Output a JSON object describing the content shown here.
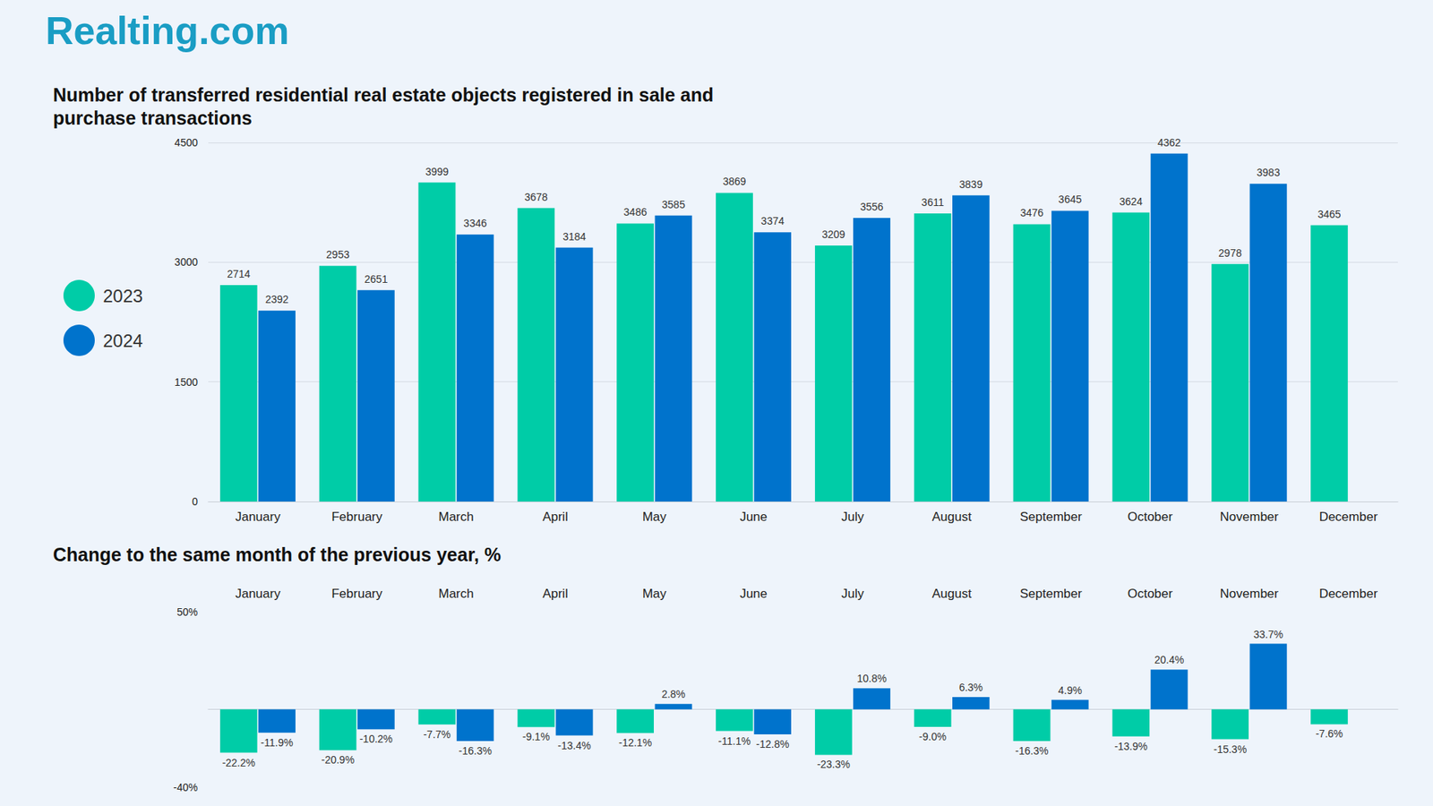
{
  "brand": "Realting.com",
  "chart_data": [
    {
      "type": "bar",
      "title": "Number of transferred residential real estate objects registered in sale and purchase transactions",
      "categories": [
        "January",
        "February",
        "March",
        "April",
        "May",
        "June",
        "July",
        "August",
        "September",
        "October",
        "November",
        "December"
      ],
      "series": [
        {
          "name": "2023",
          "color": "#00cca7",
          "values": [
            2714,
            2953,
            3999,
            3678,
            3486,
            3869,
            3209,
            3611,
            3476,
            3624,
            2978,
            3465
          ]
        },
        {
          "name": "2024",
          "color": "#0073cc",
          "values": [
            2392,
            2651,
            3346,
            3184,
            3585,
            3374,
            3556,
            3839,
            3645,
            4362,
            3983,
            null
          ]
        }
      ],
      "ylim": [
        0,
        4500
      ],
      "yticks": [
        0,
        1500,
        3000,
        4500
      ],
      "grid": true,
      "legend": "left",
      "data_labels": true
    },
    {
      "type": "bar",
      "title": "Change to the same month of the previous year, %",
      "categories": [
        "January",
        "February",
        "March",
        "April",
        "May",
        "June",
        "July",
        "August",
        "September",
        "October",
        "November",
        "December"
      ],
      "series": [
        {
          "name": "2023",
          "color": "#00cca7",
          "values": [
            -22.2,
            -20.9,
            -7.7,
            -9.1,
            -12.1,
            -11.1,
            -23.3,
            -9.0,
            -16.3,
            -13.9,
            -15.3,
            -7.6
          ],
          "value_labels": [
            "-22.2%",
            "-20.9%",
            "-7.7%",
            "-9.1%",
            "-12.1%",
            "-11.1%",
            "-23.3%",
            "-9.0%",
            "-16.3%",
            "-13.9%",
            "-15.3%",
            "-7.6%"
          ]
        },
        {
          "name": "2024",
          "color": "#0073cc",
          "values": [
            -11.9,
            -10.2,
            -16.3,
            -13.4,
            2.8,
            -12.8,
            10.8,
            6.3,
            4.9,
            20.4,
            33.7,
            null
          ],
          "value_labels": [
            "-11.9%",
            "-10.2%",
            "-16.3%",
            "-13.4%",
            "2.8%",
            "-12.8%",
            "10.8%",
            "6.3%",
            "4.9%",
            "20.4%",
            "33.7%",
            null
          ]
        }
      ],
      "ylim": [
        -40,
        50
      ],
      "yticks": [
        {
          "value": -40,
          "label": "-40%"
        },
        {
          "value": 50,
          "label": "50%"
        }
      ],
      "grid": false,
      "data_labels": true
    }
  ]
}
